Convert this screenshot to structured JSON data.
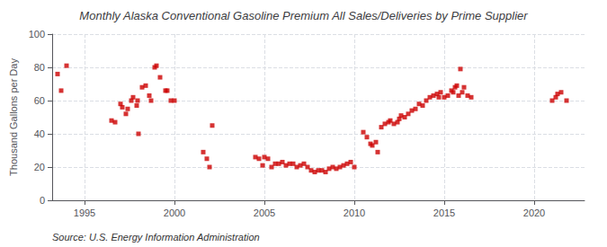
{
  "chart_data": {
    "type": "scatter",
    "title": "Monthly Alaska Conventional Gasoline Premium All Sales/Deliveries by Prime Supplier",
    "ylabel": "Thousand Gallons per Day",
    "annotation": "Source: U.S. Energy Information Administration",
    "color": "#cc0000",
    "marker": "square",
    "grid": true,
    "xlim": [
      1993.2,
      2022.8
    ],
    "xticks": [
      1995,
      2000,
      2005,
      2010,
      2015,
      2020
    ],
    "ylim": [
      0,
      100
    ],
    "yticks": [
      0,
      20,
      40,
      60,
      80,
      100
    ],
    "x": [
      1993.5,
      1993.7,
      1994.0,
      1996.5,
      1996.7,
      1997.0,
      1997.1,
      1997.3,
      1997.4,
      1997.6,
      1997.7,
      1997.9,
      1997.95,
      1998.0,
      1998.2,
      1998.4,
      1998.6,
      1998.7,
      1998.9,
      1999.0,
      1999.2,
      1999.5,
      1999.6,
      1999.8,
      2000.0,
      2001.6,
      2001.8,
      2001.95,
      2002.1,
      2004.5,
      2004.7,
      2004.9,
      2005.0,
      2005.2,
      2005.4,
      2005.6,
      2005.8,
      2006.0,
      2006.2,
      2006.4,
      2006.6,
      2006.8,
      2007.0,
      2007.2,
      2007.4,
      2007.6,
      2007.8,
      2008.0,
      2008.2,
      2008.4,
      2008.6,
      2008.8,
      2009.0,
      2009.2,
      2009.4,
      2009.6,
      2009.8,
      2010.0,
      2010.5,
      2010.7,
      2010.9,
      2011.0,
      2011.2,
      2011.3,
      2011.5,
      2011.7,
      2011.9,
      2012.0,
      2012.2,
      2012.4,
      2012.5,
      2012.6,
      2012.8,
      2013.0,
      2013.2,
      2013.4,
      2013.6,
      2013.8,
      2014.0,
      2014.2,
      2014.4,
      2014.6,
      2014.7,
      2014.8,
      2015.0,
      2015.2,
      2015.4,
      2015.5,
      2015.6,
      2015.7,
      2015.8,
      2015.9,
      2016.0,
      2016.1,
      2016.3,
      2016.5,
      2021.0,
      2021.2,
      2021.3,
      2021.5,
      2021.8
    ],
    "values": [
      76,
      66,
      81,
      48,
      47,
      58,
      56,
      52,
      55,
      60,
      62,
      57,
      60,
      40,
      68,
      69,
      63,
      60,
      80,
      81,
      74,
      66,
      66,
      60,
      60,
      29,
      25,
      20,
      45,
      26,
      25,
      21,
      26,
      25,
      20,
      22,
      22,
      23,
      21,
      22,
      22,
      20,
      21,
      22,
      20,
      18,
      17,
      18,
      18,
      17,
      19,
      20,
      19,
      20,
      21,
      22,
      23,
      20,
      41,
      38,
      34,
      33,
      35,
      29,
      44,
      46,
      47,
      48,
      46,
      47,
      49,
      51,
      50,
      52,
      54,
      55,
      58,
      57,
      60,
      62,
      63,
      64,
      62,
      65,
      62,
      63,
      66,
      65,
      68,
      69,
      63,
      79,
      65,
      68,
      63,
      62,
      60,
      62,
      64,
      65,
      60
    ]
  }
}
